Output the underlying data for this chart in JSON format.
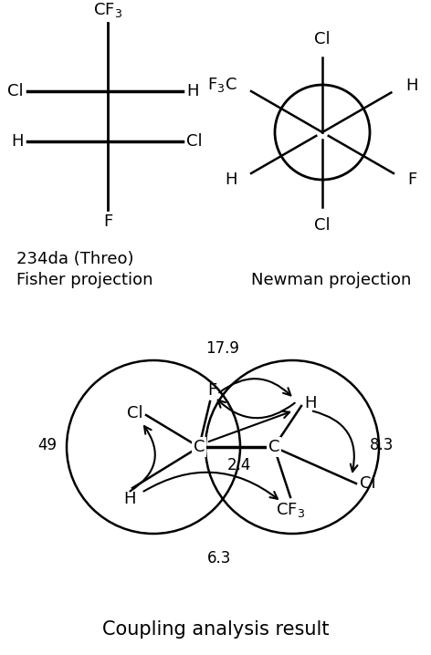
{
  "bg_color": "#ffffff",
  "title": "Coupling analysis result",
  "fisher_label1": "234da (Threo)",
  "fisher_label2": "Fisher projection",
  "newman_label": "Newman projection"
}
